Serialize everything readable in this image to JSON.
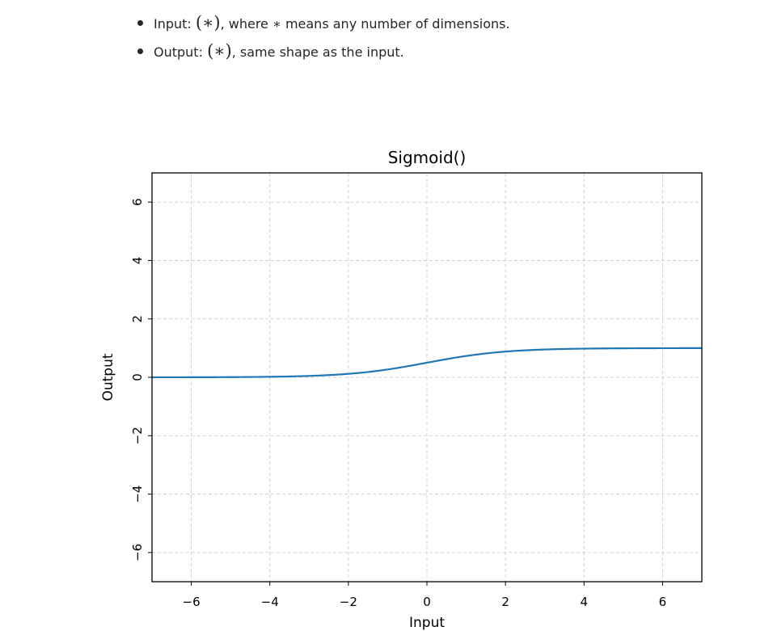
{
  "shape_notes": [
    {
      "label": "Input: ",
      "math": "(∗)",
      "mid": ", where ",
      "star": "∗",
      "rest": " means any number of dimensions."
    },
    {
      "label": "Output: ",
      "math": "(∗)",
      "rest": ", same shape as the input."
    }
  ],
  "chart_data": {
    "type": "line",
    "title": "Sigmoid()",
    "xlabel": "Input",
    "ylabel": "Output",
    "xlim": [
      -7,
      7
    ],
    "ylim": [
      -7,
      7
    ],
    "xticks": [
      -6,
      -4,
      -2,
      0,
      2,
      4,
      6
    ],
    "yticks": [
      -6,
      -4,
      -2,
      0,
      2,
      4,
      6
    ],
    "xtick_labels": [
      "−6",
      "−4",
      "−2",
      "0",
      "2",
      "4",
      "6"
    ],
    "ytick_labels": [
      "−6",
      "−4",
      "−2",
      "0",
      "2",
      "4",
      "6"
    ],
    "grid": true,
    "series": [
      {
        "function": "sigmoid",
        "color": "#1f77b4",
        "x": [
          -7,
          -6,
          -5,
          -4,
          -3,
          -2,
          -1,
          0,
          1,
          2,
          3,
          4,
          5,
          6,
          7
        ],
        "y": [
          0.0009,
          0.0025,
          0.0067,
          0.018,
          0.047,
          0.119,
          0.269,
          0.5,
          0.731,
          0.881,
          0.953,
          0.982,
          0.993,
          0.998,
          0.999
        ]
      }
    ]
  }
}
